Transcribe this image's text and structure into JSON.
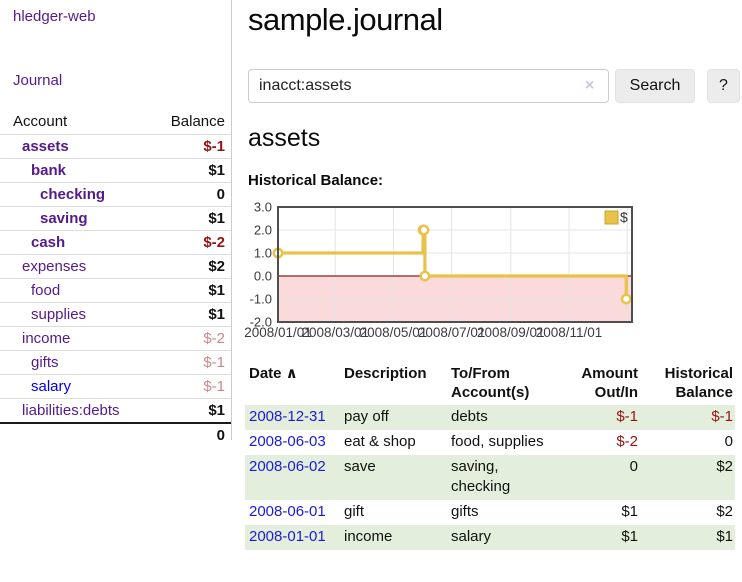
{
  "brand": "hledger-web",
  "nav": {
    "journal": "Journal"
  },
  "sidebar": {
    "header": {
      "account": "Account",
      "balance": "Balance"
    },
    "accounts": [
      {
        "name": "assets",
        "balance": "$-1",
        "indent": 1,
        "bold": true,
        "balance_style": "neg"
      },
      {
        "name": "bank",
        "balance": "$1",
        "indent": 2,
        "bold": true,
        "balance_style": "pos"
      },
      {
        "name": "checking",
        "balance": "0",
        "indent": 3,
        "bold": true,
        "balance_style": "pos"
      },
      {
        "name": "saving",
        "balance": "$1",
        "indent": 3,
        "bold": true,
        "balance_style": "pos"
      },
      {
        "name": "cash",
        "balance": "$-2",
        "indent": 2,
        "bold": true,
        "balance_style": "neg"
      },
      {
        "name": "expenses",
        "balance": "$2",
        "indent": 1,
        "bold": false,
        "balance_style": "pos"
      },
      {
        "name": "food",
        "balance": "$1",
        "indent": 2,
        "bold": false,
        "balance_style": "pos"
      },
      {
        "name": "supplies",
        "balance": "$1",
        "indent": 2,
        "bold": false,
        "balance_style": "pos"
      },
      {
        "name": "income",
        "balance": "$-2",
        "indent": 1,
        "bold": false,
        "balance_style": "neg-dim"
      },
      {
        "name": "gifts",
        "balance": "$-1",
        "indent": 2,
        "bold": false,
        "balance_style": "neg-dim"
      },
      {
        "name": "salary",
        "balance": "$-1",
        "indent": 2,
        "bold": false,
        "balance_style": "neg-dim",
        "unvisited": true
      },
      {
        "name": "liabilities:debts",
        "balance": "$1",
        "indent": 1,
        "bold": false,
        "balance_style": "pos"
      }
    ],
    "total": "0"
  },
  "main": {
    "title": "sample.journal",
    "search": {
      "value": "inacct:assets",
      "clear_icon": "×",
      "search_label": "Search",
      "help_label": "?"
    },
    "account_heading": "assets",
    "chart_heading": "Historical Balance:"
  },
  "chart_data": {
    "type": "line",
    "step": true,
    "title": "Historical Balance",
    "series": [
      {
        "name": "$",
        "color": "#E8C24A",
        "points": [
          [
            "2008-01-01",
            1
          ],
          [
            "2008-06-01",
            2
          ],
          [
            "2008-06-02",
            2
          ],
          [
            "2008-06-03",
            0
          ],
          [
            "2008-12-31",
            -1
          ]
        ]
      }
    ],
    "ylim": [
      -2.0,
      3.0
    ],
    "yticks": [
      {
        "label": "3.0",
        "value": 3
      },
      {
        "label": "2.0",
        "value": 2
      },
      {
        "label": "1.0",
        "value": 1
      },
      {
        "label": "0.0",
        "value": 0
      },
      {
        "label": "-1.0",
        "value": -1
      },
      {
        "label": "-2.0",
        "value": -2
      }
    ],
    "xticks": [
      {
        "label": "2008/01/01",
        "date": "2008-01-01"
      },
      {
        "label": "2008/03/01",
        "date": "2008-03-01"
      },
      {
        "label": "2008/05/01",
        "date": "2008-05-01"
      },
      {
        "label": "2008/07/01",
        "date": "2008-07-01"
      },
      {
        "label": "2008/09/01",
        "date": "2008-09-01"
      },
      {
        "label": "2008/11/01",
        "date": "2008-11-01"
      }
    ],
    "x_gridline_dates": [
      "2008-03-01",
      "2008-05-01",
      "2008-07-01",
      "2008-09-01",
      "2008-11-01",
      "2009-01-01"
    ],
    "legend": {
      "label": "$",
      "position": "top-right"
    },
    "grid": true,
    "colors": {
      "grid": "#e4e4e4",
      "border": "#4f4f4f",
      "negative_fill": "#FADADA",
      "zero_line": "#8B1A1A",
      "marker_fill": "#ffffff",
      "legend_box_border": "#C9A42F",
      "tick_text": "#3b3b3b"
    }
  },
  "register": {
    "columns": [
      {
        "label": "Date",
        "sortable": true,
        "sort_indicator": "∧",
        "align": "left"
      },
      {
        "label": "Description",
        "align": "left"
      },
      {
        "label": "To/From Account(s)",
        "align": "left"
      },
      {
        "label": "Amount Out/In",
        "align": "right"
      },
      {
        "label": "Historical Balance",
        "align": "right"
      }
    ],
    "rows": [
      {
        "date": "2008-12-31",
        "description": "pay off",
        "accounts": "debts",
        "amount": "$-1",
        "balance": "$-1",
        "amount_style": "neg",
        "balance_style": "neg",
        "highlight": true
      },
      {
        "date": "2008-06-03",
        "description": "eat & shop",
        "accounts": "food, supplies",
        "amount": "$-2",
        "balance": "0",
        "amount_style": "neg",
        "balance_style": "pos",
        "highlight": false
      },
      {
        "date": "2008-06-02",
        "description": "save",
        "accounts": "saving, checking",
        "amount": "0",
        "balance": "$2",
        "amount_style": "pos",
        "balance_style": "pos",
        "highlight": true
      },
      {
        "date": "2008-06-01",
        "description": "gift",
        "accounts": "gifts",
        "amount": "$1",
        "balance": "$2",
        "amount_style": "pos",
        "balance_style": "pos",
        "highlight": false
      },
      {
        "date": "2008-01-01",
        "description": "income",
        "accounts": "salary",
        "amount": "$1",
        "balance": "$1",
        "amount_style": "pos",
        "balance_style": "pos",
        "highlight": true
      }
    ]
  }
}
